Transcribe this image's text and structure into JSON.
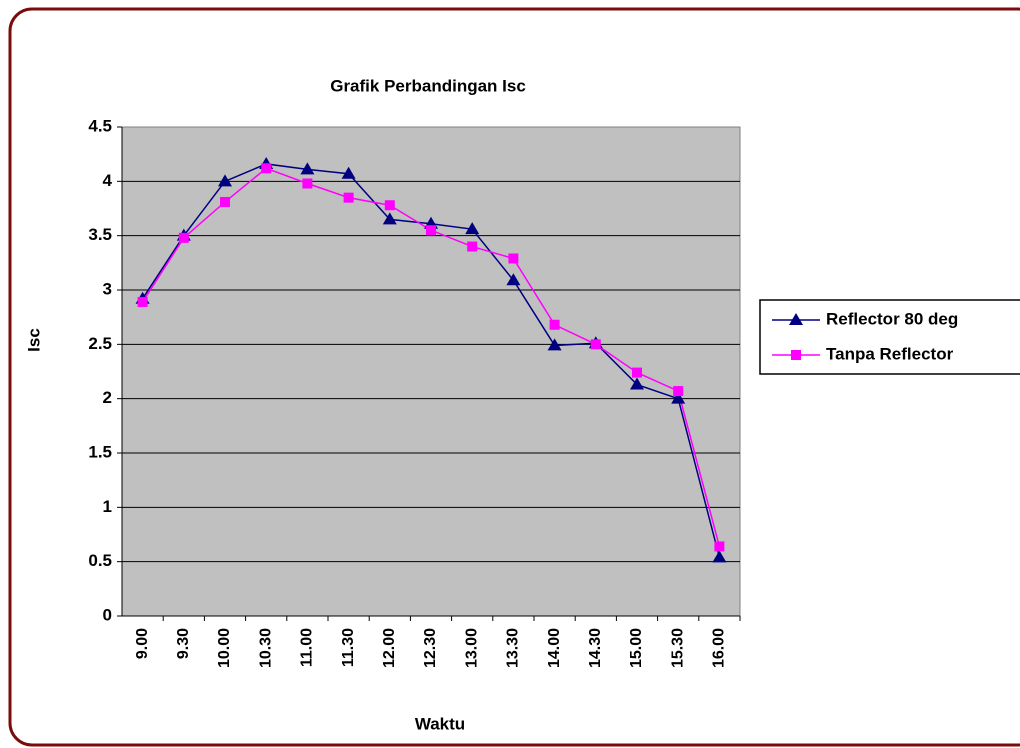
{
  "chart_data": {
    "type": "line",
    "title": "Grafik Perbandingan Isc",
    "x_label": "Waktu",
    "y_label": "Isc",
    "categories": [
      "9.00",
      "9.30",
      "10.00",
      "10.30",
      "11.00",
      "11.30",
      "12.00",
      "12.30",
      "13.00",
      "13.30",
      "14.00",
      "14.30",
      "15.00",
      "15.30",
      "16.00"
    ],
    "series": [
      {
        "name": "Reflector 80 deg",
        "color": "#000080",
        "marker": "triangle",
        "values": [
          2.92,
          3.5,
          4.0,
          4.16,
          4.11,
          4.07,
          3.65,
          3.61,
          3.56,
          3.09,
          2.49,
          2.51,
          2.13,
          2.0,
          0.54
        ]
      },
      {
        "name": "Tanpa Reflector",
        "color": "#ff00ff",
        "marker": "square",
        "values": [
          2.89,
          3.48,
          3.81,
          4.12,
          3.98,
          3.85,
          3.78,
          3.55,
          3.4,
          3.29,
          2.68,
          2.5,
          2.24,
          2.07,
          0.64
        ]
      }
    ],
    "ylim": [
      0,
      4.5
    ],
    "yticks": [
      0,
      0.5,
      1,
      1.5,
      2,
      2.5,
      3,
      3.5,
      4,
      4.5
    ],
    "grid": true,
    "legend": "right"
  }
}
